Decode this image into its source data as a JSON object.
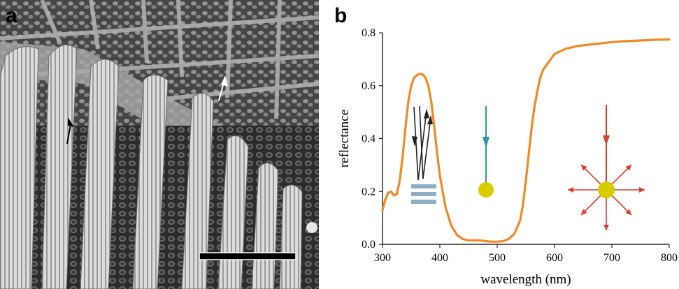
{
  "panels": {
    "a": {
      "label": "a"
    },
    "b": {
      "label": "b"
    }
  },
  "chart_data": {
    "type": "line",
    "title": "",
    "xlabel": "wavelength (nm)",
    "ylabel": "reflectance",
    "xlim": [
      300,
      800
    ],
    "ylim": [
      0.0,
      0.8
    ],
    "xticks": [
      "300",
      "400",
      "500",
      "600",
      "700",
      "800"
    ],
    "yticks": [
      "0.0",
      "0.2",
      "0.4",
      "0.6",
      "0.8"
    ],
    "grid": false,
    "series": [
      {
        "color": "#f08a24",
        "x": [
          300,
          305,
          310,
          315,
          320,
          325,
          330,
          335,
          340,
          345,
          350,
          355,
          360,
          365,
          370,
          375,
          380,
          385,
          390,
          395,
          400,
          410,
          420,
          430,
          440,
          450,
          460,
          470,
          480,
          490,
          500,
          510,
          520,
          530,
          540,
          545,
          550,
          555,
          560,
          565,
          570,
          575,
          580,
          590,
          600,
          620,
          640,
          660,
          680,
          700,
          720,
          740,
          760,
          780,
          800
        ],
        "y": [
          0.13,
          0.17,
          0.195,
          0.2,
          0.185,
          0.19,
          0.24,
          0.33,
          0.44,
          0.54,
          0.6,
          0.63,
          0.64,
          0.645,
          0.643,
          0.63,
          0.6,
          0.54,
          0.45,
          0.35,
          0.26,
          0.14,
          0.07,
          0.035,
          0.02,
          0.015,
          0.015,
          0.015,
          0.012,
          0.01,
          0.01,
          0.012,
          0.02,
          0.04,
          0.09,
          0.15,
          0.24,
          0.34,
          0.44,
          0.52,
          0.58,
          0.63,
          0.66,
          0.69,
          0.72,
          0.74,
          0.75,
          0.755,
          0.76,
          0.765,
          0.768,
          0.77,
          0.772,
          0.774,
          0.775
        ]
      }
    ],
    "insets": [
      {
        "icon": "multilayer-reflection-icon",
        "color": "#222222",
        "layer_color": "#8fb0c4"
      },
      {
        "icon": "absorption-icon",
        "color": "#2a9aa0",
        "dot_color": "#d6cc00"
      },
      {
        "icon": "diffuse-scattering-icon",
        "color": "#e03a2a",
        "dot_color": "#d6cc00"
      }
    ]
  },
  "scale_bar": {
    "color": "#000000"
  }
}
